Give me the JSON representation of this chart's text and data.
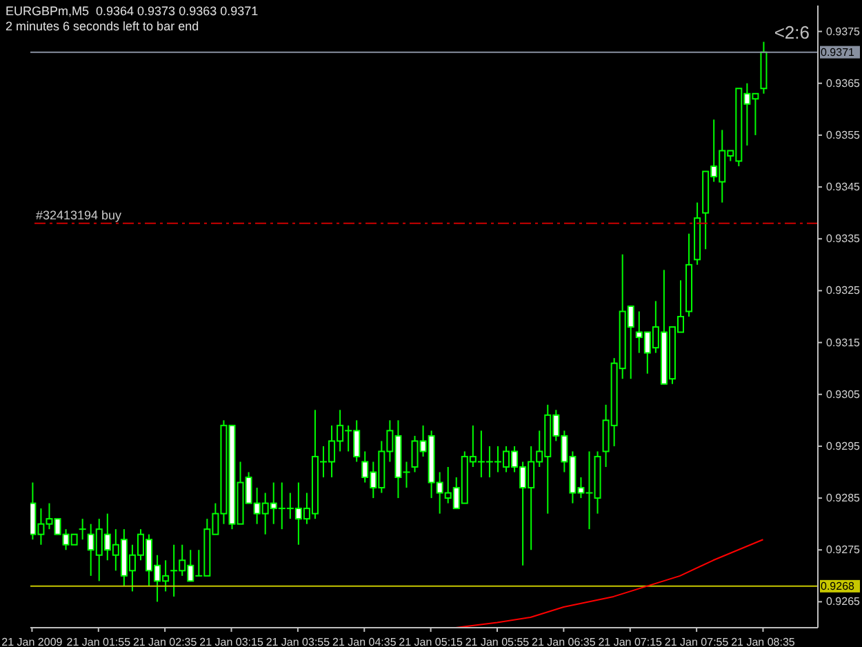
{
  "chart_data": {
    "type": "candlestick",
    "title": "EURGBPm,M5  0.9364 0.9373 0.9363 0.9371",
    "subtitle": "2 minutes 6 seconds left to bar end",
    "annotations": [
      "<2:6"
    ],
    "color": "#00ff00",
    "x": [
      "2009-01-21T01:15",
      "2009-01-21T01:20",
      "2009-01-21T01:25",
      "2009-01-21T01:30",
      "2009-01-21T01:35",
      "2009-01-21T01:40",
      "2009-01-21T01:45",
      "2009-01-21T01:50",
      "2009-01-21T01:55",
      "2009-01-21T02:00",
      "2009-01-21T02:05",
      "2009-01-21T02:10",
      "2009-01-21T02:15",
      "2009-01-21T02:20",
      "2009-01-21T02:25",
      "2009-01-21T02:30",
      "2009-01-21T02:35",
      "2009-01-21T02:40",
      "2009-01-21T02:45",
      "2009-01-21T02:50",
      "2009-01-21T02:55",
      "2009-01-21T03:00",
      "2009-01-21T03:05",
      "2009-01-21T03:10",
      "2009-01-21T03:15",
      "2009-01-21T03:20",
      "2009-01-21T03:25",
      "2009-01-21T03:30",
      "2009-01-21T03:35",
      "2009-01-21T03:40",
      "2009-01-21T03:45",
      "2009-01-21T03:50",
      "2009-01-21T03:55",
      "2009-01-21T04:00",
      "2009-01-21T04:05",
      "2009-01-21T04:10",
      "2009-01-21T04:15",
      "2009-01-21T04:20",
      "2009-01-21T04:25",
      "2009-01-21T04:30",
      "2009-01-21T04:35",
      "2009-01-21T04:40",
      "2009-01-21T04:45",
      "2009-01-21T04:50",
      "2009-01-21T04:55",
      "2009-01-21T05:00",
      "2009-01-21T05:05",
      "2009-01-21T05:10",
      "2009-01-21T05:15",
      "2009-01-21T05:20",
      "2009-01-21T05:25",
      "2009-01-21T05:30",
      "2009-01-21T05:35",
      "2009-01-21T05:40",
      "2009-01-21T05:45",
      "2009-01-21T05:50",
      "2009-01-21T05:55",
      "2009-01-21T06:00",
      "2009-01-21T06:05",
      "2009-01-21T06:10",
      "2009-01-21T06:15",
      "2009-01-21T06:20",
      "2009-01-21T06:25",
      "2009-01-21T06:30",
      "2009-01-21T06:35",
      "2009-01-21T06:40",
      "2009-01-21T06:45",
      "2009-01-21T06:50",
      "2009-01-21T06:55",
      "2009-01-21T07:00",
      "2009-01-21T07:05",
      "2009-01-21T07:10",
      "2009-01-21T07:15",
      "2009-01-21T07:20",
      "2009-01-21T07:25",
      "2009-01-21T07:30",
      "2009-01-21T07:35",
      "2009-01-21T07:40",
      "2009-01-21T07:45",
      "2009-01-21T07:50",
      "2009-01-21T07:55",
      "2009-01-21T08:00",
      "2009-01-21T08:05",
      "2009-01-21T08:10",
      "2009-01-21T08:15",
      "2009-01-21T08:20",
      "2009-01-21T08:25",
      "2009-01-21T08:30",
      "2009-01-21T08:35"
    ],
    "ohlc": [
      [
        0.9284,
        0.9288,
        0.9277,
        0.9278
      ],
      [
        0.9278,
        0.9283,
        0.9276,
        0.928
      ],
      [
        0.928,
        0.9284,
        0.9279,
        0.9281
      ],
      [
        0.9281,
        0.9281,
        0.9278,
        0.9278
      ],
      [
        0.9278,
        0.9279,
        0.9275,
        0.9276
      ],
      [
        0.9276,
        0.9278,
        0.9276,
        0.9278
      ],
      [
        0.9279,
        0.9281,
        0.9277,
        0.9279
      ],
      [
        0.9278,
        0.928,
        0.927,
        0.9275
      ],
      [
        0.9274,
        0.9281,
        0.9269,
        0.9279
      ],
      [
        0.9278,
        0.9282,
        0.9273,
        0.9275
      ],
      [
        0.9274,
        0.9279,
        0.9271,
        0.9276
      ],
      [
        0.9277,
        0.9279,
        0.9268,
        0.927
      ],
      [
        0.9271,
        0.9276,
        0.9267,
        0.9274
      ],
      [
        0.9274,
        0.9279,
        0.9273,
        0.9278
      ],
      [
        0.9277,
        0.9278,
        0.9268,
        0.9271
      ],
      [
        0.9272,
        0.9274,
        0.9265,
        0.9269
      ],
      [
        0.9269,
        0.9273,
        0.9267,
        0.927
      ],
      [
        0.9271,
        0.9276,
        0.9266,
        0.9271
      ],
      [
        0.9271,
        0.9276,
        0.927,
        0.9273
      ],
      [
        0.9272,
        0.9275,
        0.9269,
        0.9269
      ],
      [
        0.927,
        0.9275,
        0.927,
        0.927
      ],
      [
        0.927,
        0.9281,
        0.927,
        0.9279
      ],
      [
        0.9278,
        0.9284,
        0.9278,
        0.9282
      ],
      [
        0.9282,
        0.93,
        0.928,
        0.9299
      ],
      [
        0.9299,
        0.9299,
        0.9279,
        0.928
      ],
      [
        0.928,
        0.9292,
        0.928,
        0.9288
      ],
      [
        0.9289,
        0.929,
        0.9284,
        0.9284
      ],
      [
        0.9284,
        0.9287,
        0.928,
        0.9282
      ],
      [
        0.9282,
        0.9286,
        0.9278,
        0.9284
      ],
      [
        0.9284,
        0.9288,
        0.928,
        0.9283
      ],
      [
        0.9283,
        0.9288,
        0.9279,
        0.9283
      ],
      [
        0.9283,
        0.9286,
        0.9281,
        0.9283
      ],
      [
        0.9283,
        0.9288,
        0.9276,
        0.9281
      ],
      [
        0.9281,
        0.9286,
        0.928,
        0.9283
      ],
      [
        0.9282,
        0.9302,
        0.9281,
        0.9293
      ],
      [
        0.9292,
        0.9295,
        0.9289,
        0.9292
      ],
      [
        0.9292,
        0.9299,
        0.9289,
        0.9296
      ],
      [
        0.9296,
        0.9302,
        0.9294,
        0.9299
      ],
      [
        0.9298,
        0.9299,
        0.9294,
        0.9298
      ],
      [
        0.9298,
        0.93,
        0.9292,
        0.9293
      ],
      [
        0.9292,
        0.9294,
        0.9288,
        0.9289
      ],
      [
        0.929,
        0.9292,
        0.9285,
        0.9287
      ],
      [
        0.9287,
        0.9296,
        0.9286,
        0.9294
      ],
      [
        0.9294,
        0.93,
        0.9292,
        0.9298
      ],
      [
        0.9297,
        0.93,
        0.9285,
        0.9289
      ],
      [
        0.929,
        0.9292,
        0.9287,
        0.929
      ],
      [
        0.9291,
        0.9297,
        0.929,
        0.9296
      ],
      [
        0.9296,
        0.9299,
        0.9293,
        0.9294
      ],
      [
        0.9297,
        0.9298,
        0.9285,
        0.9288
      ],
      [
        0.9288,
        0.929,
        0.9282,
        0.9286
      ],
      [
        0.9285,
        0.9291,
        0.9284,
        0.9286
      ],
      [
        0.9287,
        0.9289,
        0.9283,
        0.9283
      ],
      [
        0.9284,
        0.9294,
        0.9284,
        0.9293
      ],
      [
        0.9292,
        0.9299,
        0.9291,
        0.9293
      ],
      [
        0.9292,
        0.9298,
        0.9289,
        0.9292
      ],
      [
        0.9292,
        0.9295,
        0.9289,
        0.9292
      ],
      [
        0.9292,
        0.9295,
        0.929,
        0.9292
      ],
      [
        0.9291,
        0.9295,
        0.929,
        0.9294
      ],
      [
        0.9294,
        0.9295,
        0.929,
        0.9291
      ],
      [
        0.9291,
        0.9292,
        0.9272,
        0.9287
      ],
      [
        0.9287,
        0.9295,
        0.9275,
        0.9292
      ],
      [
        0.9292,
        0.9298,
        0.9291,
        0.9294
      ],
      [
        0.9293,
        0.9303,
        0.9282,
        0.9301
      ],
      [
        0.9301,
        0.9302,
        0.9296,
        0.9297
      ],
      [
        0.9297,
        0.9298,
        0.929,
        0.9292
      ],
      [
        0.9293,
        0.9294,
        0.9284,
        0.9286
      ],
      [
        0.9287,
        0.9289,
        0.9285,
        0.9286
      ],
      [
        0.9286,
        0.9294,
        0.9279,
        0.9286
      ],
      [
        0.9285,
        0.9294,
        0.9282,
        0.9293
      ],
      [
        0.9294,
        0.9303,
        0.9291,
        0.93
      ],
      [
        0.9299,
        0.9312,
        0.9295,
        0.9311
      ],
      [
        0.931,
        0.9332,
        0.9308,
        0.9321
      ],
      [
        0.9322,
        0.9322,
        0.9308,
        0.9318
      ],
      [
        0.9317,
        0.9321,
        0.9313,
        0.9316
      ],
      [
        0.9317,
        0.9317,
        0.9309,
        0.9313
      ],
      [
        0.9314,
        0.9323,
        0.9313,
        0.9318
      ],
      [
        0.9317,
        0.9329,
        0.9307,
        0.9307
      ],
      [
        0.9308,
        0.9318,
        0.9307,
        0.9318
      ],
      [
        0.9317,
        0.9327,
        0.9317,
        0.932
      ],
      [
        0.9321,
        0.9336,
        0.932,
        0.933
      ],
      [
        0.9331,
        0.9342,
        0.933,
        0.9339
      ],
      [
        0.934,
        0.9348,
        0.9333,
        0.9348
      ],
      [
        0.9349,
        0.9358,
        0.9346,
        0.9347
      ],
      [
        0.9346,
        0.9356,
        0.9342,
        0.9352
      ],
      [
        0.9351,
        0.9352,
        0.935,
        0.9352
      ],
      [
        0.935,
        0.9364,
        0.9349,
        0.9364
      ],
      [
        0.9363,
        0.9365,
        0.9353,
        0.9361
      ],
      [
        0.9362,
        0.9363,
        0.9355,
        0.9363
      ],
      [
        0.9364,
        0.9373,
        0.9363,
        0.9371
      ]
    ],
    "series": [
      {
        "type": "line",
        "color": "#ff0000",
        "x": [
          "2009-01-21T05:30",
          "2009-01-21T05:55",
          "2009-01-21T06:15",
          "2009-01-21T06:35",
          "2009-01-21T06:50",
          "2009-01-21T07:05",
          "2009-01-21T07:25",
          "2009-01-21T07:45",
          "2009-01-21T08:05",
          "2009-01-21T08:20",
          "2009-01-21T08:35"
        ],
        "values": [
          0.926,
          0.9261,
          0.9262,
          0.9264,
          0.9265,
          0.9266,
          0.9268,
          0.927,
          0.9273,
          0.9275,
          0.9277
        ]
      }
    ],
    "xlim": [
      "2009-01-21T01:14",
      "2009-01-21T09:08"
    ],
    "xticks": [
      {
        "value": "2009-01-21T01:15",
        "label": "21 Jan 2009"
      },
      {
        "value": "2009-01-21T01:55",
        "label": "21 Jan 01:55"
      },
      {
        "value": "2009-01-21T02:35",
        "label": "21 Jan 02:35"
      },
      {
        "value": "2009-01-21T03:15",
        "label": "21 Jan 03:15"
      },
      {
        "value": "2009-01-21T03:55",
        "label": "21 Jan 03:55"
      },
      {
        "value": "2009-01-21T04:35",
        "label": "21 Jan 04:35"
      },
      {
        "value": "2009-01-21T05:15",
        "label": "21 Jan 05:15"
      },
      {
        "value": "2009-01-21T05:55",
        "label": "21 Jan 05:55"
      },
      {
        "value": "2009-01-21T06:35",
        "label": "21 Jan 06:35"
      },
      {
        "value": "2009-01-21T07:15",
        "label": "21 Jan 07:15"
      },
      {
        "value": "2009-01-21T07:55",
        "label": "21 Jan 07:55"
      },
      {
        "value": "2009-01-21T08:35",
        "label": "21 Jan 08:35"
      }
    ],
    "ylim": [
      0.926,
      0.938
    ],
    "yticks": [
      0.9265,
      0.9275,
      0.9285,
      0.9295,
      0.9305,
      0.9315,
      0.9325,
      0.9335,
      0.9345,
      0.9355,
      0.9365,
      0.9375
    ],
    "ref_lines": [
      {
        "axis": "y",
        "value": 0.9371,
        "label": "0.9371",
        "color": "#8890a0"
      },
      {
        "axis": "y",
        "value": 0.9268,
        "label": "0.9268",
        "color": "#c8c800"
      },
      {
        "axis": "y",
        "value": 0.9338,
        "label": "#32413194 buy",
        "color": "#cc0000",
        "line_style": "dashed"
      }
    ]
  }
}
